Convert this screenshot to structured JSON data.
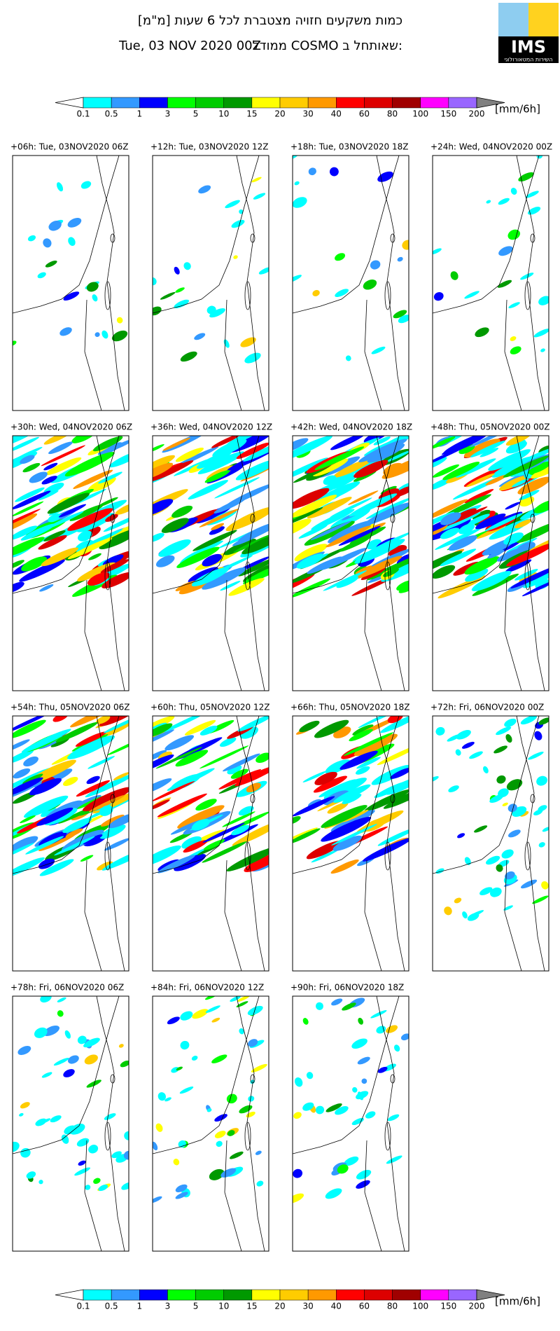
{
  "header": {
    "title": "כמות משקעים חזויה מצטברת לכל 6 שעות [מ\"מ]",
    "model_text": "ממודל COSMO שאותחל ב:",
    "init_time": "Tue, 03 NOV 2020 00Z"
  },
  "logo": {
    "text": "IMS",
    "org": "השירות המטאורולוגי"
  },
  "legend": {
    "unit": "[mm/6h]",
    "labels": [
      "0.1",
      "0.5",
      "1",
      "3",
      "5",
      "10",
      "15",
      "20",
      "30",
      "40",
      "60",
      "80",
      "100",
      "150",
      "200"
    ],
    "colors": [
      "#00ffff",
      "#3399ff",
      "#0000ff",
      "#00ff00",
      "#00cc00",
      "#009900",
      "#ffff00",
      "#ffcc00",
      "#ff9900",
      "#ff0000",
      "#dd0000",
      "#a00000",
      "#ff00ff",
      "#9966ff"
    ],
    "under_color": "#ffffff",
    "over_color": "#808080"
  },
  "panels": [
    {
      "label": "+06h: Tue, 03NOV2020 06Z"
    },
    {
      "label": "+12h: Tue, 03NOV2020 12Z"
    },
    {
      "label": "+18h: Tue, 03NOV2020 18Z"
    },
    {
      "label": "+24h: Wed, 04NOV2020 00Z"
    },
    {
      "label": "+30h: Wed, 04NOV2020 06Z"
    },
    {
      "label": "+36h: Wed, 04NOV2020 12Z"
    },
    {
      "label": "+42h: Wed, 04NOV2020 18Z"
    },
    {
      "label": "+48h: Thu, 05NOV2020 00Z"
    },
    {
      "label": "+54h: Thu, 05NOV2020 06Z"
    },
    {
      "label": "+60h: Thu, 05NOV2020 12Z"
    },
    {
      "label": "+66h: Thu, 05NOV2020 18Z"
    },
    {
      "label": "+72h: Fri, 06NOV2020 00Z"
    },
    {
      "label": "+78h: Fri, 06NOV2020 06Z"
    },
    {
      "label": "+84h: Fri, 06NOV2020 12Z"
    },
    {
      "label": "+90h: Fri, 06NOV2020 18Z"
    }
  ]
}
